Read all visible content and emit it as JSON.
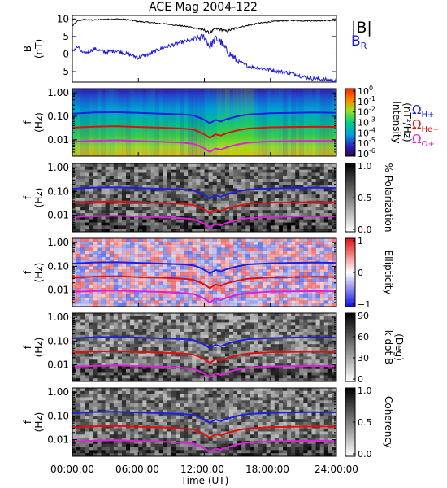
{
  "title": "ACE Mag 2004-122",
  "colors": {
    "B_total": "#000000",
    "B_R": "#1a1adc",
    "H_plus": "#1f1fe0",
    "He_plus": "#e01010",
    "O_plus": "#e020e0"
  },
  "xaxis": {
    "label": "Time (UT)",
    "ticks": [
      "00:00:00",
      "06:00:00",
      "12:00:00",
      "18:00:00",
      "24:00:00"
    ],
    "range_hours": [
      0,
      24
    ]
  },
  "freq_axis": {
    "label_f": "f",
    "label_unit": "(Hz)",
    "ticks": [
      "1.00",
      "0.10",
      "0.01"
    ],
    "log_range": [
      0.002,
      1.5
    ]
  },
  "legend": {
    "B_total": "|B|",
    "B_R_main": "B",
    "B_R_sub": "R",
    "omega": "Ω",
    "H_sub": "H+",
    "He_sub": "He+",
    "O_sub": "O+"
  },
  "panels": {
    "mag": {
      "ylabel_main": "B",
      "ylabel_unit": "(nT)",
      "yticks": [
        "10",
        "5",
        "0",
        "-5"
      ],
      "ylim": [
        -8,
        11
      ]
    },
    "intensity": {
      "cbar_ticks": [
        "10",
        "10",
        "10",
        "10",
        "10",
        "10",
        "10"
      ],
      "cbar_exps": [
        "0",
        "-1",
        "-2",
        "-3",
        "-4",
        "-5",
        "-6"
      ],
      "cbar_label": "Intensity",
      "cbar_unit": "(nT²/Hz)"
    },
    "polarization": {
      "cbar_ticks": [
        "1.0",
        "0.5",
        "0.0"
      ],
      "cbar_label": "% Polarization"
    },
    "ellipticity": {
      "cbar_ticks": [
        "1",
        "0",
        "−1"
      ],
      "cbar_label": "Ellipticity"
    },
    "kdotb": {
      "cbar_ticks": [
        "90",
        "60",
        "30",
        "0"
      ],
      "cbar_label": "k dot B",
      "cbar_unit": "(Deg)"
    },
    "coherency": {
      "cbar_ticks": [
        "1.0",
        "0.5",
        "0.0"
      ],
      "cbar_label": "Coherency"
    }
  },
  "chart_data": [
    {
      "type": "line",
      "panel": "mag",
      "title": "ACE Mag 2004-122",
      "ylabel": "B (nT)",
      "xlabel": "Time (UT)",
      "ylim": [
        -8,
        11
      ],
      "series": [
        {
          "name": "|B|",
          "x": [
            0,
            0.5,
            1,
            2,
            3,
            4,
            5,
            6,
            7,
            8,
            9,
            10,
            11,
            12,
            12.5,
            13,
            13.5,
            14,
            15,
            16,
            17,
            18,
            19,
            20,
            21,
            22,
            23,
            24
          ],
          "y": [
            8,
            9.5,
            9.8,
            9.7,
            9.9,
            10,
            9.8,
            9.3,
            9,
            8.7,
            8.4,
            8,
            7.6,
            6.8,
            6,
            7.2,
            7,
            6.5,
            7.5,
            8.2,
            8.8,
            9.2,
            9.5,
            9.6,
            9.5,
            9.5,
            9.6,
            9.6
          ]
        },
        {
          "name": "B_R",
          "x": [
            0,
            0.5,
            1,
            2,
            3,
            4,
            5,
            6,
            7,
            8,
            9,
            10,
            11,
            12,
            12.5,
            13,
            13.5,
            14,
            15,
            16,
            17,
            18,
            19,
            20,
            21,
            22,
            23,
            24
          ],
          "y": [
            1,
            2,
            0,
            1.5,
            0.5,
            1,
            0,
            -1,
            0,
            1.5,
            2.5,
            3.5,
            4,
            5,
            2,
            4.5,
            3.5,
            1,
            -2,
            -3.5,
            -4,
            -4.5,
            -5,
            -5.5,
            -6.5,
            -7,
            -7.3,
            -7.5
          ]
        }
      ]
    },
    {
      "type": "line",
      "panel": "gyrofrequencies",
      "ylabel": "f (Hz)",
      "xlabel": "Time (UT)",
      "series": [
        {
          "name": "Ω H+",
          "x": [
            0,
            2,
            4,
            6,
            8,
            10,
            11,
            11.5,
            12,
            12.5,
            13,
            13.5,
            14,
            15,
            16,
            18,
            20,
            22,
            24
          ],
          "y": [
            0.13,
            0.145,
            0.15,
            0.14,
            0.13,
            0.12,
            0.11,
            0.09,
            0.07,
            0.05,
            0.07,
            0.06,
            0.075,
            0.1,
            0.12,
            0.135,
            0.14,
            0.145,
            0.14
          ]
        },
        {
          "name": "Ω He+",
          "x": [
            0,
            2,
            4,
            6,
            8,
            10,
            11,
            11.5,
            12,
            12.5,
            13,
            13.5,
            14,
            15,
            16,
            18,
            20,
            22,
            24
          ],
          "y": [
            0.033,
            0.036,
            0.038,
            0.035,
            0.033,
            0.03,
            0.027,
            0.022,
            0.017,
            0.012,
            0.017,
            0.015,
            0.019,
            0.025,
            0.03,
            0.034,
            0.035,
            0.036,
            0.035
          ]
        },
        {
          "name": "Ω O+",
          "x": [
            0,
            2,
            4,
            6,
            8,
            10,
            11,
            11.5,
            12,
            12.5,
            13,
            13.5,
            14,
            15,
            16,
            18,
            20,
            22,
            24
          ],
          "y": [
            0.0083,
            0.009,
            0.0095,
            0.0088,
            0.0083,
            0.0075,
            0.0068,
            0.0055,
            0.0043,
            0.003,
            0.0043,
            0.0038,
            0.0047,
            0.0063,
            0.0075,
            0.0085,
            0.0088,
            0.009,
            0.0088
          ]
        }
      ]
    }
  ]
}
